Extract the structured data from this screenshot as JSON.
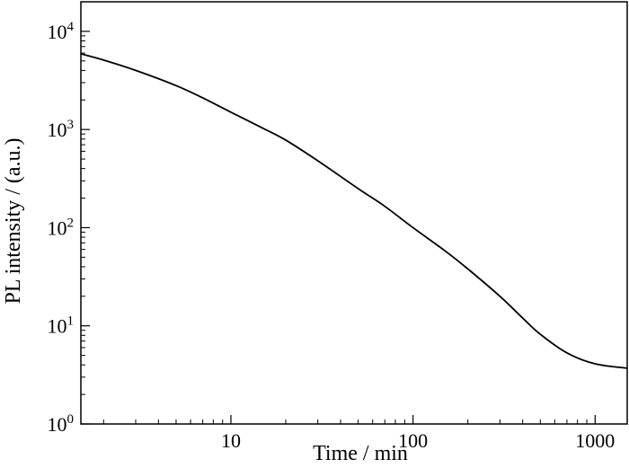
{
  "chart_data": {
    "type": "line",
    "title": "",
    "xlabel": "Time / min",
    "ylabel": "PL intensity / (a.u.)",
    "xscale": "log",
    "yscale": "log",
    "xlim": [
      1.5,
      1500
    ],
    "ylim": [
      1,
      20000
    ],
    "grid": false,
    "legend": "none",
    "x_ticks": [
      {
        "value": 10,
        "label": "10"
      },
      {
        "value": 100,
        "label": "100"
      },
      {
        "value": 1000,
        "label": "1000"
      }
    ],
    "y_ticks": [
      {
        "value": 1,
        "base": "10",
        "exp": "0"
      },
      {
        "value": 10,
        "base": "10",
        "exp": "1"
      },
      {
        "value": 100,
        "base": "10",
        "exp": "2"
      },
      {
        "value": 1000,
        "base": "10",
        "exp": "3"
      },
      {
        "value": 10000,
        "base": "10",
        "exp": "4"
      }
    ],
    "series": [
      {
        "color": "#000000",
        "x": [
          1.5,
          2,
          3,
          5,
          7,
          10,
          15,
          20,
          30,
          50,
          70,
          100,
          150,
          200,
          300,
          400,
          500,
          700,
          1000,
          1500
        ],
        "y": [
          5900,
          5100,
          4000,
          2800,
          2100,
          1500,
          1030,
          780,
          480,
          250,
          165,
          100,
          58,
          38,
          20,
          12,
          8.2,
          5.3,
          4.1,
          3.7
        ]
      }
    ]
  }
}
